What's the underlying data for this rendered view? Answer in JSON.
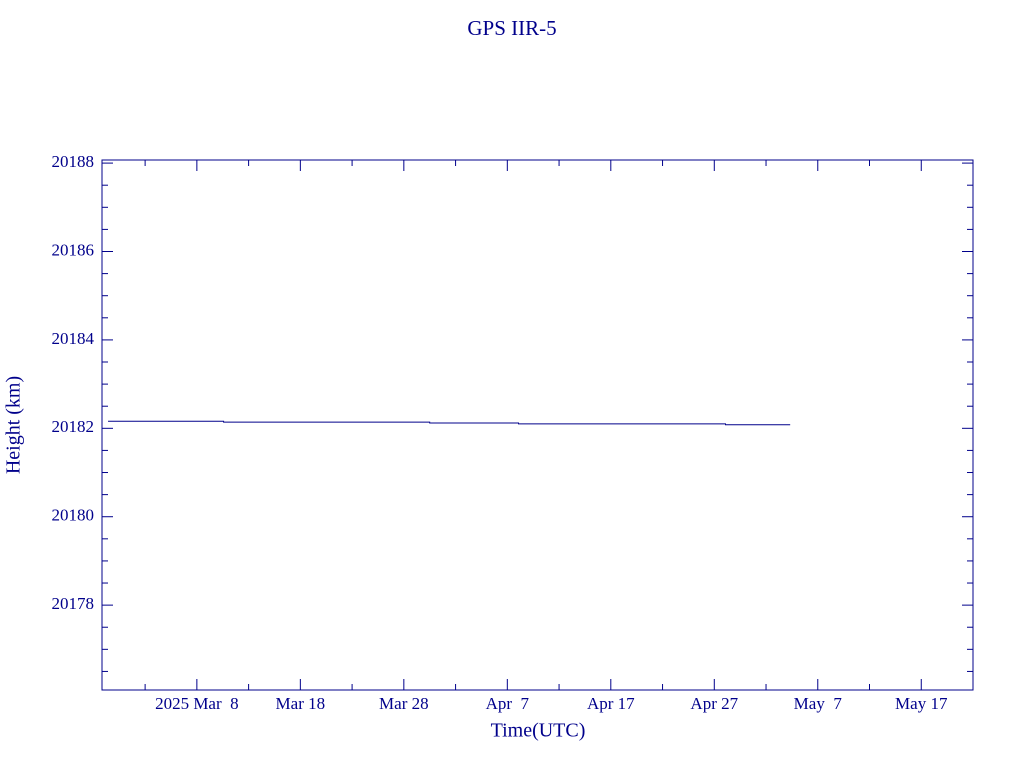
{
  "chart_data": {
    "type": "line",
    "title": "GPS IIR-5",
    "xlabel": "Time(UTC)",
    "ylabel": "Height (km)",
    "x": [
      "2025-02-27T10:00",
      "2025-03-10T14:00",
      "2025-03-10T14:00",
      "2025-03-30T12:00",
      "2025-03-30T12:00",
      "2025-04-08T02:00",
      "2025-04-08T02:00",
      "2025-04-28T02:00",
      "2025-04-28T02:00",
      "2025-05-04T08:00"
    ],
    "series": [
      {
        "color": "#00008b",
        "values": [
          20182.16,
          20182.16,
          20182.14,
          20182.14,
          20182.12,
          20182.12,
          20182.1,
          20182.1,
          20182.08,
          20182.08
        ]
      }
    ],
    "xlim": [
      "2025-02-26T20:00",
      "2025-05-22T00:00"
    ],
    "xticks": [
      {
        "value": "2025-03-08T00:00",
        "label": "2025 Mar  8"
      },
      {
        "value": "2025-03-18T00:00",
        "label": "Mar 18"
      },
      {
        "value": "2025-03-28T00:00",
        "label": "Mar 28"
      },
      {
        "value": "2025-04-07T00:00",
        "label": "Apr  7"
      },
      {
        "value": "2025-04-17T00:00",
        "label": "Apr 17"
      },
      {
        "value": "2025-04-27T00:00",
        "label": "Apr 27"
      },
      {
        "value": "2025-05-07T00:00",
        "label": "May  7"
      },
      {
        "value": "2025-05-17T00:00",
        "label": "May 17"
      }
    ],
    "xminorticks": [
      "2025-03-03T00:00",
      "2025-03-13T00:00",
      "2025-03-23T00:00",
      "2025-04-02T00:00",
      "2025-04-12T00:00",
      "2025-04-22T00:00",
      "2025-05-02T00:00",
      "2025-05-12T00:00"
    ],
    "ylim": [
      20176.08,
      20188.07
    ],
    "yticks": [
      20178,
      20180,
      20182,
      20184,
      20186,
      20188
    ],
    "yminorticks": [
      20176.5,
      20177,
      20177.5,
      20178.5,
      20179,
      20179.5,
      20180.5,
      20181,
      20181.5,
      20182.5,
      20183,
      20183.5,
      20184.5,
      20185,
      20185.5,
      20186.5,
      20187,
      20187.5
    ],
    "axis_color": "#00008b"
  }
}
